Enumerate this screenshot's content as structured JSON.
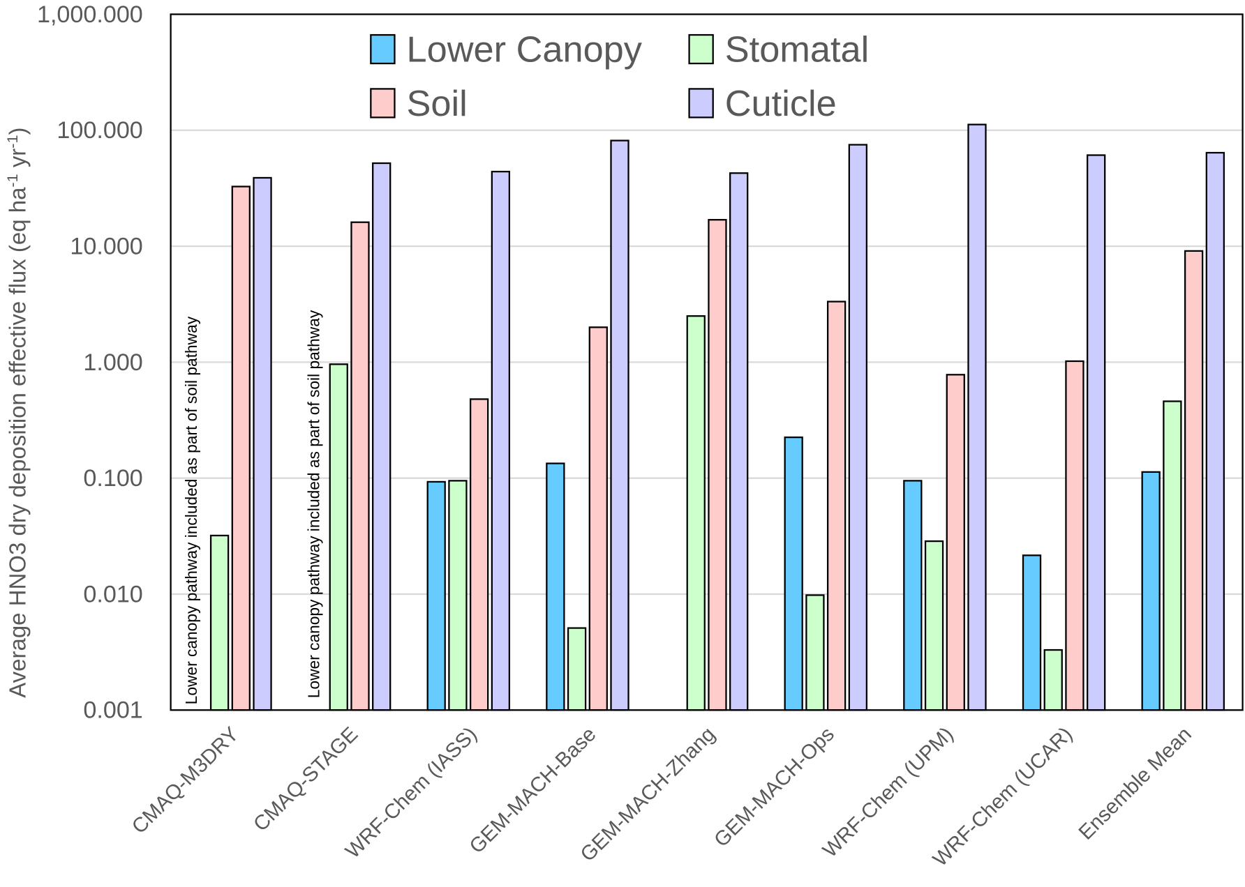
{
  "chart_data": {
    "type": "bar",
    "title": "",
    "xlabel": "",
    "ylabel": "Average HNO3 dry deposition effective flux (eq ha",
    "ylabel_unit_parts": [
      "-1",
      " yr",
      "-1",
      ")"
    ],
    "yscale": "log",
    "ylim": [
      0.001,
      1000
    ],
    "yticks": [
      0.001,
      0.01,
      0.1,
      1,
      10,
      100,
      1000
    ],
    "ytick_labels": [
      "0.001",
      "0.010",
      "0.100",
      "1.000",
      "10.000",
      "100.000",
      "1,000.000"
    ],
    "grid": true,
    "legend_position": "top",
    "categories": [
      "CMAQ-M3DRY",
      "CMAQ-STAGE",
      "WRF-Chem (IASS)",
      "GEM-MACH-Base",
      "GEM-MACH-Zhang",
      "GEM-MACH-Ops",
      "WRF-Chem (UPM)",
      "WRF-Chem (UCAR)",
      "Ensemble Mean"
    ],
    "series": [
      {
        "name": "Lower Canopy",
        "color": "#66CCFF",
        "values": [
          null,
          null,
          0.093,
          0.134,
          null,
          0.225,
          0.095,
          0.0216,
          0.113
        ]
      },
      {
        "name": "Stomatal",
        "color": "#CCFFCC",
        "values": [
          0.032,
          0.96,
          0.095,
          0.0051,
          2.5,
          0.0098,
          0.0286,
          0.0033,
          0.46
        ]
      },
      {
        "name": "Soil",
        "color": "#FFCCCC",
        "values": [
          32.7,
          16.1,
          0.48,
          2.0,
          16.9,
          3.33,
          0.78,
          1.02,
          9.1
        ]
      },
      {
        "name": "Cuticle",
        "color": "#CCCCFF",
        "values": [
          38.9,
          52,
          44,
          81.5,
          42.7,
          75,
          112,
          61,
          64
        ]
      }
    ],
    "annotations": [
      "Lower canopy pathway included as part of soil pathway",
      "Lower canopy pathway included as part of soil pathway"
    ]
  }
}
